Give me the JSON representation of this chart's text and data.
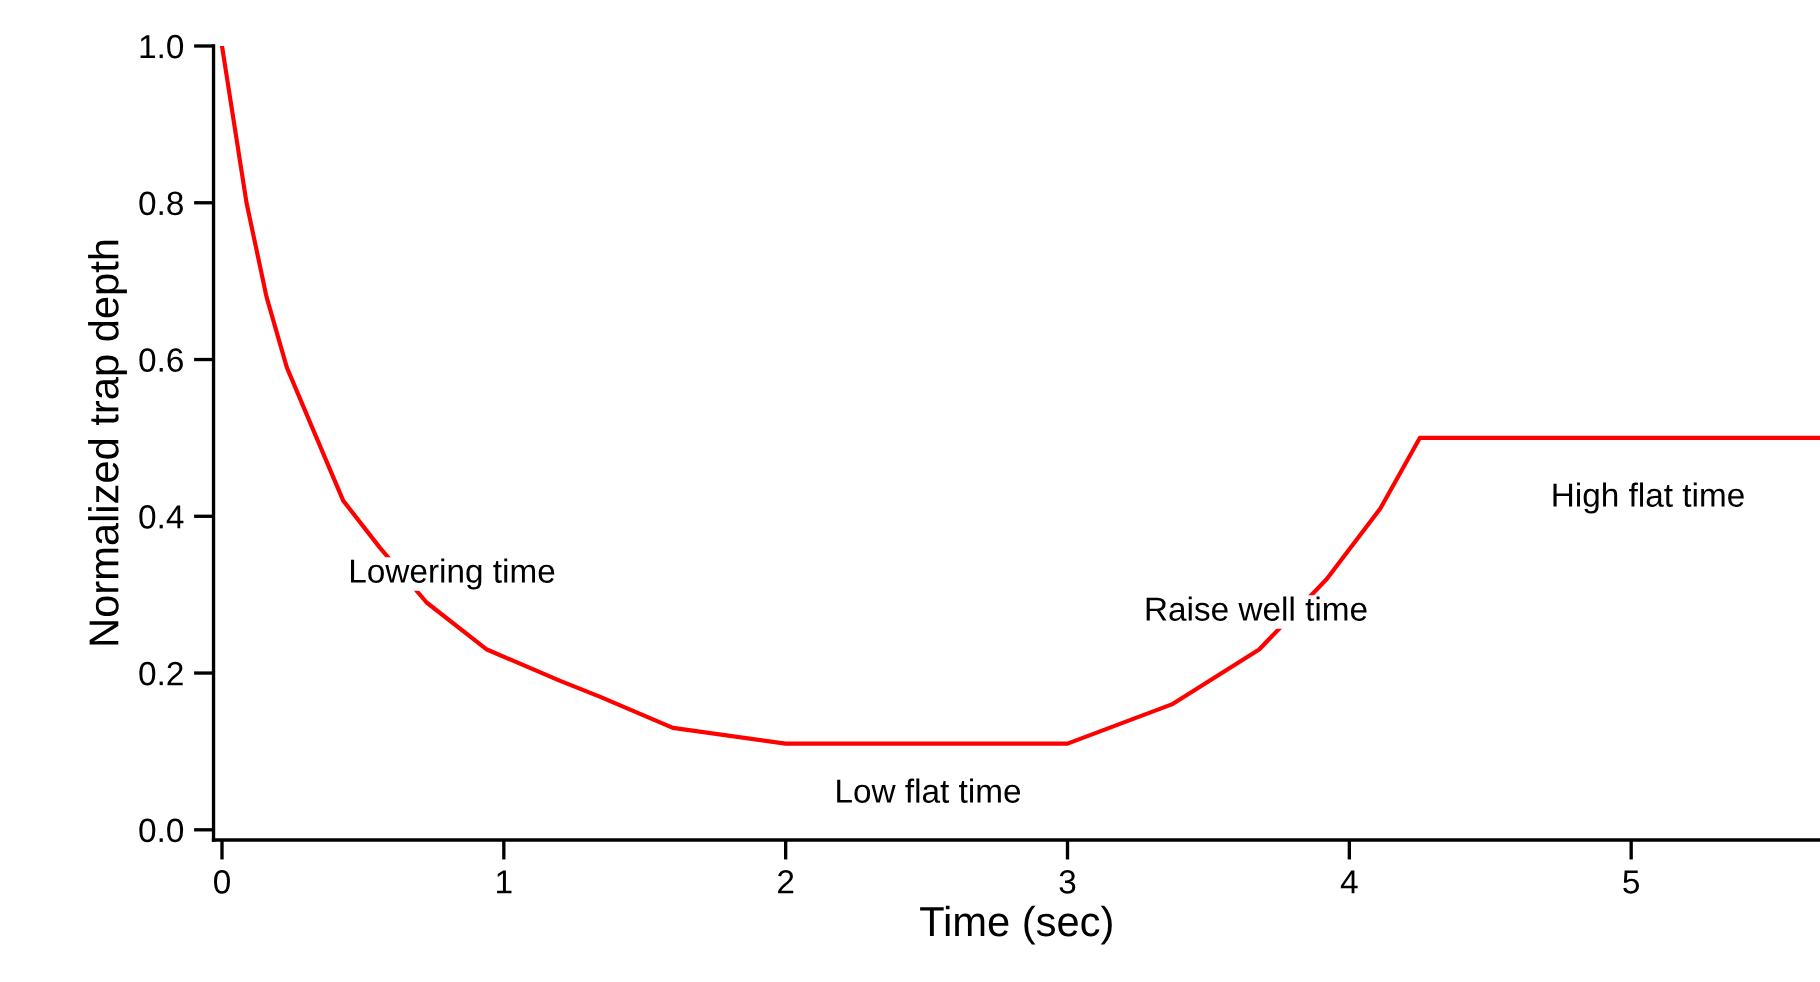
{
  "chart_data": {
    "type": "line",
    "xlabel": "Time (sec)",
    "ylabel": "Normalized trap depth",
    "x": [
      0,
      0.087,
      0.158,
      0.23,
      0.324,
      0.43,
      0.56,
      0.726,
      0.94,
      1.2,
      1.34,
      1.6,
      2.0,
      3.0,
      3.37,
      3.68,
      3.92,
      4.11,
      4.25,
      5.67
    ],
    "series": [
      {
        "color": "#ff0000",
        "values": [
          1.0,
          0.8,
          0.68,
          0.59,
          0.51,
          0.42,
          0.36,
          0.29,
          0.23,
          0.19,
          0.17,
          0.13,
          0.11,
          0.11,
          0.16,
          0.23,
          0.32,
          0.41,
          0.5,
          0.5
        ]
      }
    ],
    "xlim": [
      -0.03,
      5.67
    ],
    "xticks": [
      0,
      1,
      2,
      3,
      4,
      5
    ],
    "ylim": [
      -0.013,
      1.0
    ],
    "yticks": [
      {
        "value": 0,
        "label": "0.0"
      },
      0.2,
      0.4,
      0.6,
      0.8,
      {
        "value": 1,
        "label": "1.0"
      }
    ],
    "grid": false,
    "legend": false,
    "marker": "none",
    "line_style": "solid",
    "annotations": [
      "Lowering time",
      "Low flat time",
      "Raise well time",
      "High flat time"
    ]
  }
}
